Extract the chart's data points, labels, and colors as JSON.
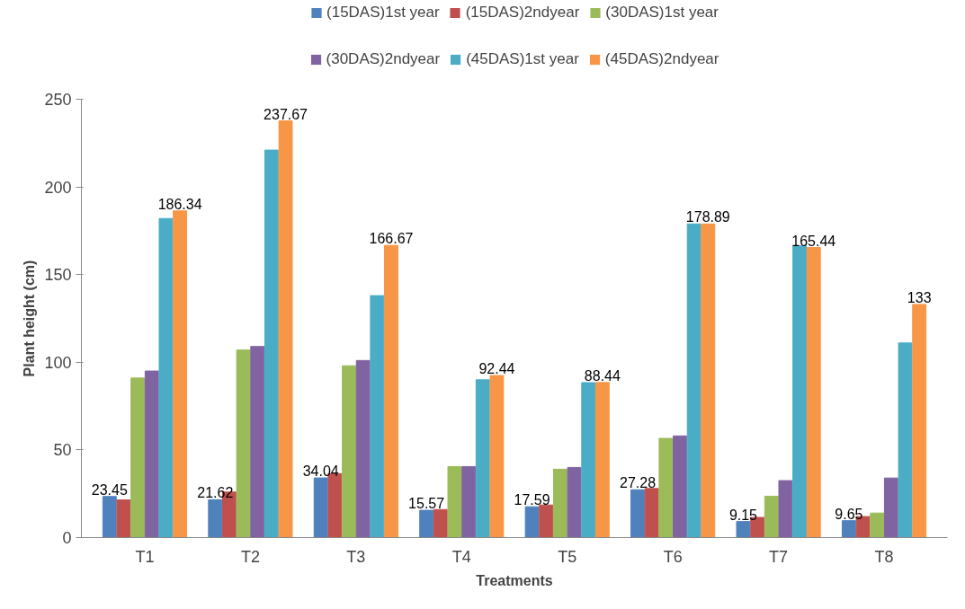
{
  "chart_data": {
    "type": "bar",
    "xlabel": "Treatments",
    "ylabel": "Plant height (cm)",
    "categories": [
      "T1",
      "T2",
      "T3",
      "T4",
      "T5",
      "T6",
      "T7",
      "T8"
    ],
    "series": [
      {
        "name": "(15DAS)1st year",
        "color": "#4f81bd",
        "values": [
          23.45,
          21.62,
          34.04,
          15.57,
          17.59,
          27.28,
          9.15,
          9.65
        ],
        "value_labels": [
          "23.45",
          "21.62",
          "34.04",
          "15.57",
          "17.59",
          "27.28",
          "9.15",
          "9.65"
        ]
      },
      {
        "name": "(15DAS)2ndyear",
        "color": "#c0504d",
        "values": [
          21.5,
          26,
          36.5,
          16,
          18.6,
          28,
          11.5,
          12
        ]
      },
      {
        "name": "(30DAS)1st year",
        "color": "#9bbb59",
        "values": [
          91,
          107,
          98,
          40.5,
          39,
          56.6,
          23.6,
          14
        ]
      },
      {
        "name": "(30DAS)2ndyear",
        "color": "#8064a2",
        "values": [
          95,
          109,
          101,
          40.5,
          40,
          58,
          32.5,
          34
        ]
      },
      {
        "name": "(45DAS)1st year",
        "color": "#4bacc6",
        "values": [
          182,
          221,
          138,
          90,
          88.4,
          178.9,
          166.4,
          111
        ]
      },
      {
        "name": "(45DAS)2ndyear",
        "color": "#f79646",
        "values": [
          186.34,
          237.67,
          166.67,
          92.44,
          88.44,
          178.89,
          165.44,
          133
        ],
        "value_labels": [
          "186.34",
          "237.67",
          "166.67",
          "92.44",
          "88.44",
          "178.89",
          "165.44",
          "133"
        ]
      }
    ],
    "ylim": [
      0,
      250
    ],
    "yticks": [
      0,
      50,
      100,
      150,
      200,
      250
    ],
    "grid": false,
    "legend": "top"
  }
}
